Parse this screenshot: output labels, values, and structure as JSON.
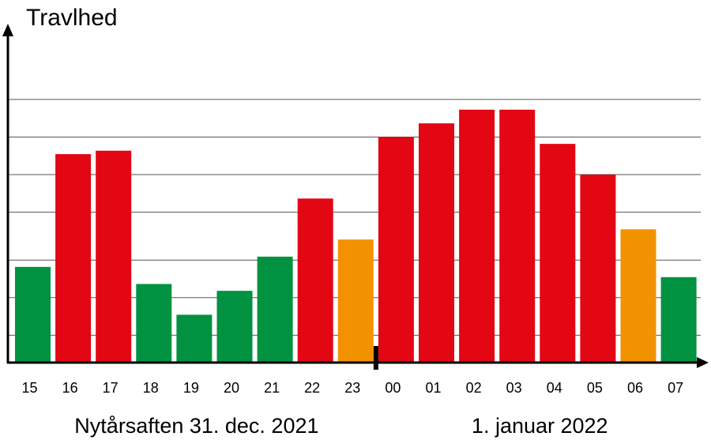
{
  "chart_data": {
    "type": "bar",
    "ylabel": "Travlhed",
    "xlabel": "",
    "categories": [
      "15",
      "16",
      "17",
      "18",
      "19",
      "20",
      "21",
      "22",
      "23",
      "00",
      "01",
      "02",
      "03",
      "04",
      "05",
      "06",
      "07"
    ],
    "values": [
      28,
      61,
      62,
      23,
      14,
      21,
      31,
      48,
      36,
      66,
      70,
      74,
      74,
      64,
      55,
      39,
      25
    ],
    "bar_colors": [
      "#009240",
      "#e30613",
      "#e30613",
      "#009240",
      "#009240",
      "#009240",
      "#009240",
      "#e30613",
      "#f39200",
      "#e30613",
      "#e30613",
      "#e30613",
      "#e30613",
      "#e30613",
      "#e30613",
      "#f39200",
      "#009240"
    ],
    "ylim": [
      0,
      95
    ],
    "gridlines": [
      8,
      19,
      30,
      44,
      55,
      66,
      77
    ],
    "grid": true,
    "colors": {
      "green": "#009240",
      "red": "#e30613",
      "orange": "#f39200",
      "grid": "#555555",
      "axis": "#000000"
    },
    "groups": [
      {
        "label": "Nytårsaften 31. dec. 2021",
        "from": "15",
        "to": "23"
      },
      {
        "label": "1. januar 2022",
        "from": "00",
        "to": "07"
      }
    ],
    "divider_at": "00"
  }
}
